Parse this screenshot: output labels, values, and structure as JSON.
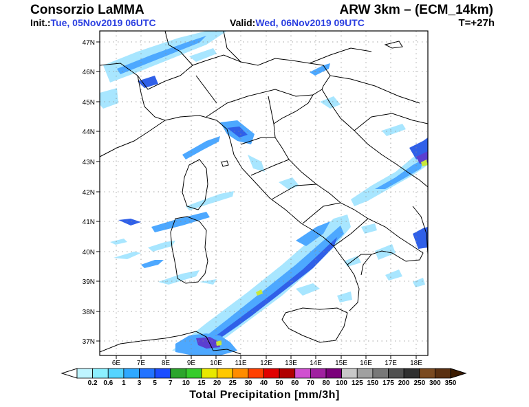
{
  "header": {
    "source": "Consorzio LaMMA",
    "init_label": "Init.:",
    "init_value": "Tue, 05Nov2019 06UTC",
    "model": "ARW 3km – (ECM_14km)",
    "valid_label": "Valid:",
    "valid_value": "Wed, 06Nov2019 09UTC",
    "lead_time": "T=+27h"
  },
  "map": {
    "lat_ticks": [
      "47N",
      "46N",
      "45N",
      "44N",
      "43N",
      "42N",
      "41N",
      "40N",
      "39N",
      "38N",
      "37N"
    ],
    "lon_ticks": [
      "6E",
      "7E",
      "8E",
      "9E",
      "10E",
      "11E",
      "12E",
      "13E",
      "14E",
      "15E",
      "16E",
      "17E",
      "18E"
    ],
    "grid": "dotted",
    "region": "Italy"
  },
  "colorbar": {
    "title": "Total Precipitation [mm/3h]",
    "levels": [
      "0.2",
      "0.6",
      "1",
      "3",
      "5",
      "7",
      "10",
      "15",
      "20",
      "25",
      "30",
      "40",
      "50",
      "60",
      "70",
      "80",
      "100",
      "125",
      "150",
      "175",
      "200",
      "250",
      "300",
      "350"
    ],
    "colors": [
      "#bff5ff",
      "#8cf0ff",
      "#55d4ff",
      "#2fa8ff",
      "#2273ff",
      "#1b4dff",
      "#2ca52c",
      "#36cc2c",
      "#e8e800",
      "#ffc800",
      "#ff8c00",
      "#ff4000",
      "#e00000",
      "#b00000",
      "#d050d0",
      "#a020a0",
      "#7a007a",
      "#c8c8c8",
      "#a0a0a0",
      "#787878",
      "#505050",
      "#303030",
      "#7a4a20",
      "#5a3010",
      "#3a1a00"
    ]
  },
  "precip_colors": {
    "light": "#a8e6ff",
    "mid": "#4da8ff",
    "heavy": "#3060e8",
    "peak": "#5b3fd0",
    "highlight": "#c8e838"
  }
}
